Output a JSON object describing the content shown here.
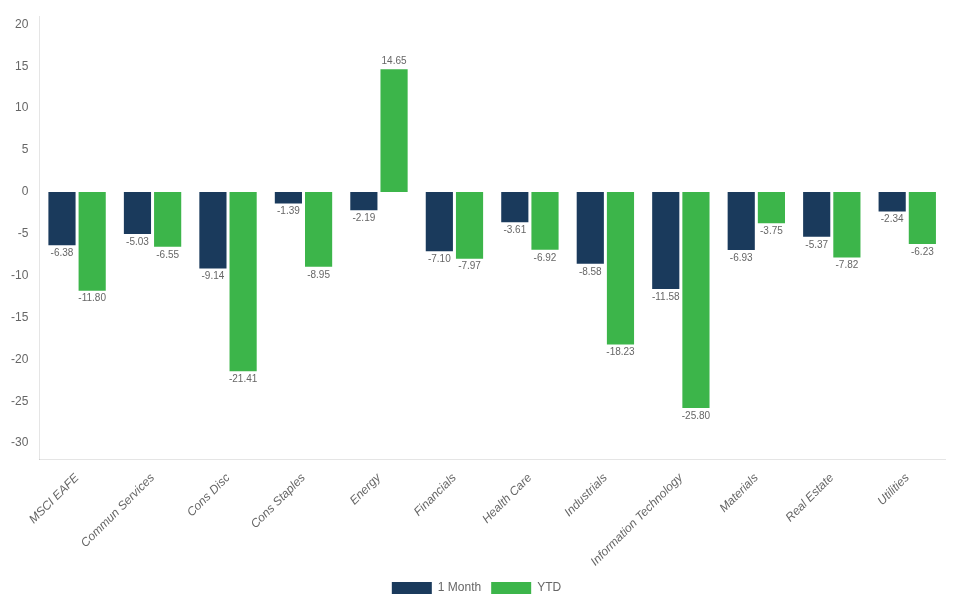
{
  "chart_data": {
    "type": "bar",
    "categories": [
      "MSCI EAFE",
      "Commun Services",
      "Cons Disc",
      "Cons Staples",
      "Energy",
      "Financials",
      "Health Care",
      "Industrials",
      "Information Technology",
      "Materials",
      "Real Estate",
      "Utilities"
    ],
    "series": [
      {
        "name": "1 Month",
        "color": "#1a3a5c",
        "values": [
          -6.38,
          -5.03,
          -9.14,
          -1.39,
          -2.19,
          -7.1,
          -3.61,
          -8.58,
          -11.58,
          -6.93,
          -5.37,
          -2.34
        ],
        "value_labels": [
          "-6.38",
          "-5.03",
          "-9.14",
          "-1.39",
          "-2.19",
          "-7.10",
          "-3.61",
          "-8.58",
          "-11.58",
          "-6.93",
          "-5.37",
          "-2.34"
        ]
      },
      {
        "name": "YTD",
        "color": "#3cb54a",
        "values": [
          -11.8,
          -6.55,
          -21.41,
          -8.95,
          14.65,
          -7.97,
          -6.92,
          -18.23,
          -25.8,
          -3.75,
          -7.82,
          -6.23
        ],
        "value_labels": [
          "-11.80",
          "-6.55",
          "-21.41",
          "-8.95",
          "14.65",
          "-7.97",
          "-6.92",
          "-18.23",
          "-25.80",
          "-3.75",
          "-7.82",
          "-6.23"
        ]
      }
    ],
    "ylim": [
      -32,
      21
    ],
    "yticks": [
      -30,
      -25,
      -20,
      -15,
      -10,
      -5,
      0,
      5,
      10,
      15,
      20
    ],
    "grid": false,
    "legend": "bottom",
    "data_labels": true
  }
}
